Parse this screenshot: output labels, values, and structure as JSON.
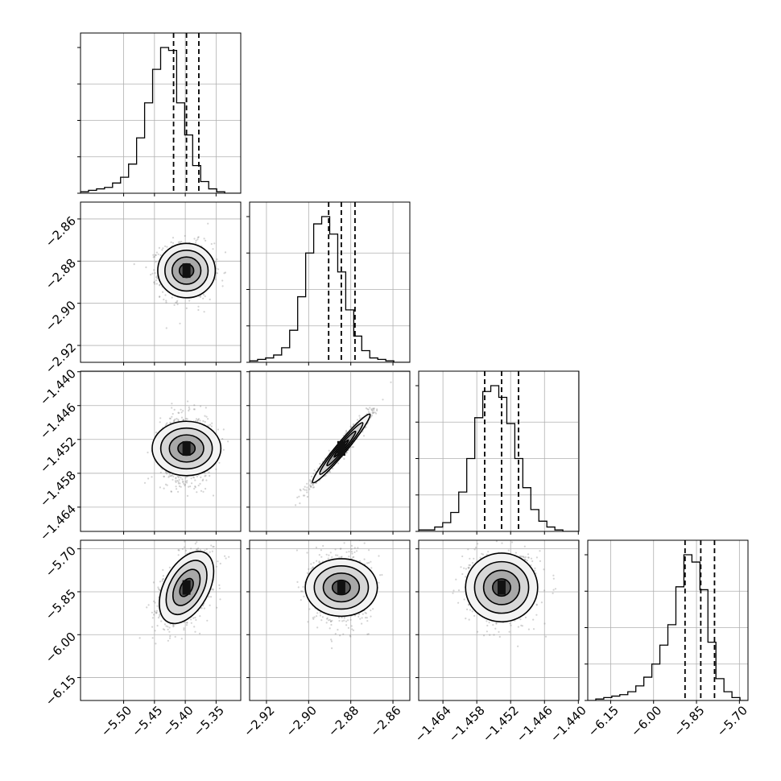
{
  "chart_data": {
    "type": "corner",
    "parameters": [
      {
        "range": [
          -5.57,
          -5.31
        ],
        "ticks": [
          -5.5,
          -5.45,
          -5.4,
          -5.35
        ],
        "tick_labels": [
          "−5.50",
          "−5.45",
          "−5.40",
          "−5.35"
        ],
        "median": -5.398,
        "quantiles": [
          -5.419,
          -5.398,
          -5.378
        ],
        "mean": -5.398,
        "std": 0.021
      },
      {
        "range": [
          -2.928,
          -2.852
        ],
        "ticks": [
          -2.92,
          -2.9,
          -2.88,
          -2.86
        ],
        "tick_labels": [
          "−2.92",
          "−2.90",
          "−2.88",
          "−2.86"
        ],
        "median": -2.8845,
        "quantiles": [
          -2.8905,
          -2.8845,
          -2.878
        ],
        "mean": -2.8845,
        "std": 0.0065
      },
      {
        "range": [
          -1.4683,
          -1.4399
        ],
        "ticks": [
          -1.464,
          -1.458,
          -1.452,
          -1.446,
          -1.44
        ],
        "tick_labels": [
          "−1.464",
          "−1.458",
          "−1.452",
          "−1.446",
          "−1.440"
        ],
        "median": -1.4536,
        "quantiles": [
          -1.4566,
          -1.4536,
          -1.4506
        ],
        "mean": -1.4536,
        "std": 0.0029
      },
      {
        "range": [
          -6.23,
          -5.67
        ],
        "ticks": [
          -6.15,
          -6.0,
          -5.85,
          -5.7
        ],
        "tick_labels": [
          "−6.15",
          "−6.00",
          "−5.85",
          "−5.70"
        ],
        "median": -5.835,
        "quantiles": [
          -5.89,
          -5.835,
          -5.787
        ],
        "mean": -5.835,
        "std": 0.06
      }
    ],
    "hist_bins": 20,
    "histograms": [
      [
        1,
        2,
        3,
        4,
        7,
        11,
        20,
        38,
        62,
        85,
        100,
        98,
        62,
        40,
        19,
        8,
        3,
        1,
        0,
        0
      ],
      [
        1,
        2,
        3,
        5,
        10,
        22,
        45,
        75,
        95,
        100,
        88,
        62,
        36,
        18,
        8,
        3,
        2,
        1,
        0,
        0
      ],
      [
        1,
        1,
        3,
        6,
        13,
        27,
        50,
        78,
        96,
        100,
        92,
        74,
        50,
        30,
        15,
        7,
        3,
        1,
        0,
        0
      ],
      [
        0,
        1,
        2,
        3,
        4,
        6,
        10,
        16,
        25,
        38,
        52,
        78,
        100,
        95,
        76,
        40,
        15,
        6,
        2,
        0
      ]
    ],
    "correlations": {
      "1-0": 0.0,
      "2-0": 0.0,
      "2-1": 0.97,
      "3-0": 0.45,
      "3-1": 0.0,
      "3-2": 0.0
    },
    "contour_levels_sigma": [
      0.5,
      1.0,
      1.5,
      2.0
    ],
    "grid": true,
    "xlabel": "",
    "ylabel": "",
    "title": ""
  }
}
